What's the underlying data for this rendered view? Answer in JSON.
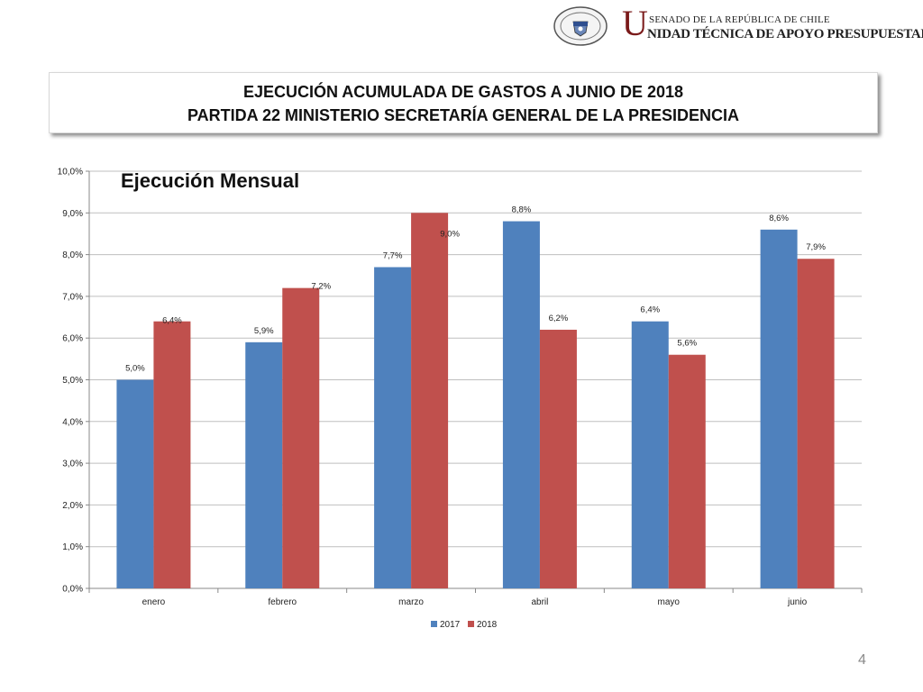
{
  "header": {
    "unit_initial": "U",
    "unit_top": "SENADO DE LA REPÚBLICA DE CHILE",
    "unit_bottom": "NIDAD TÉCNICA DE APOYO PRESUPUESTARIO",
    "seal_text_top": "REPÚBLICA DE CHILE",
    "seal_text_bottom": "SENADO"
  },
  "title": {
    "line1": "EJECUCIÓN ACUMULADA DE GASTOS A JUNIO DE 2018",
    "line2": "PARTIDA 22 MINISTERIO SECRETARÍA GENERAL DE LA PRESIDENCIA"
  },
  "page_number": "4",
  "colors": {
    "series2017": "#4f81bd",
    "series2018": "#c0504d",
    "grid": "#bfbfbf"
  },
  "chart_data": {
    "type": "bar",
    "title": "Ejecución Mensual",
    "categories": [
      "enero",
      "febrero",
      "marzo",
      "abril",
      "mayo",
      "junio"
    ],
    "series": [
      {
        "name": "2017",
        "values": [
          5.0,
          5.9,
          7.7,
          8.8,
          6.4,
          8.6
        ],
        "labels": [
          "5,0%",
          "5,9%",
          "7,7%",
          "8,8%",
          "6,4%",
          "8,6%"
        ]
      },
      {
        "name": "2018",
        "values": [
          6.4,
          7.2,
          9.0,
          6.2,
          5.6,
          7.9
        ],
        "labels": [
          "6,4%",
          "7,2%",
          "9,0%",
          "6,2%",
          "5,6%",
          "7,9%"
        ]
      }
    ],
    "ylim": [
      0,
      10
    ],
    "yticks": [
      "0,0%",
      "1,0%",
      "2,0%",
      "3,0%",
      "4,0%",
      "5,0%",
      "6,0%",
      "7,0%",
      "8,0%",
      "9,0%",
      "10,0%"
    ],
    "grid": true,
    "legend_position": "bottom"
  }
}
